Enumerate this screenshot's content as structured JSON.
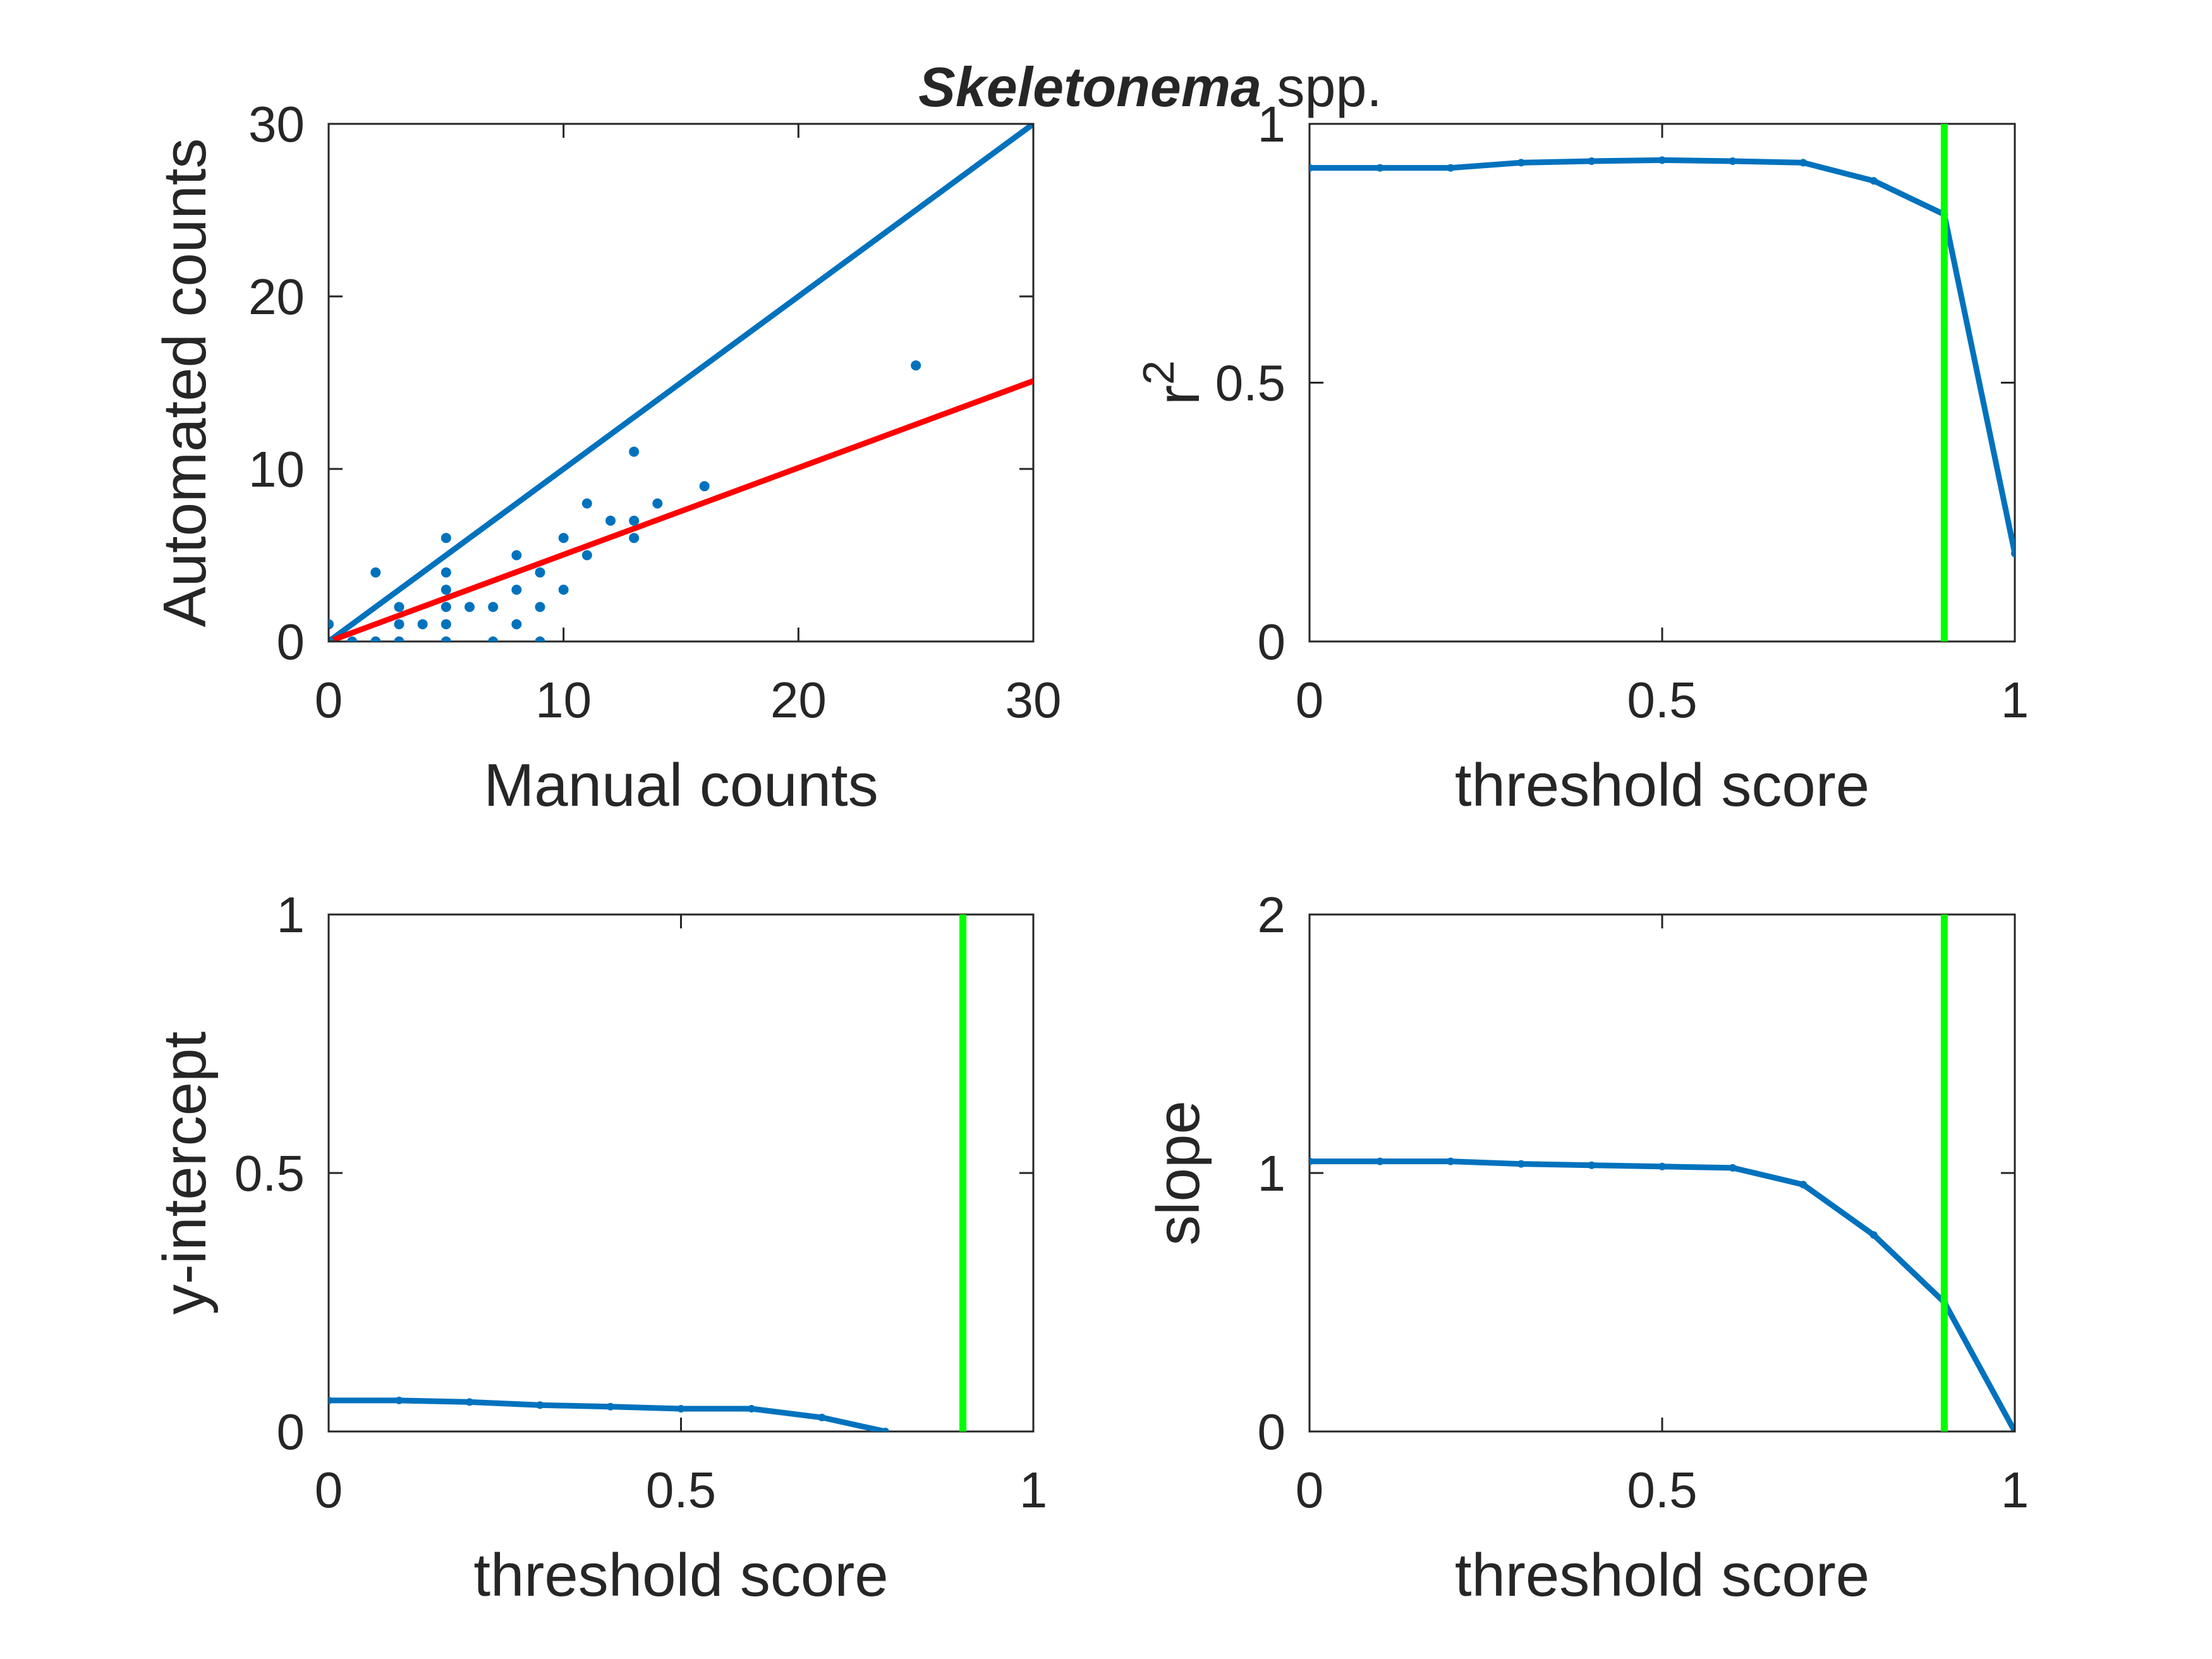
{
  "title": {
    "italic": "Skeletonema",
    "rest": " spp."
  },
  "colors": {
    "series": "#0072BD",
    "fit": "#FF0000",
    "threshold": "#00FF00",
    "axis": "#262626",
    "background": "#FFFFFF"
  },
  "chart_data": [
    {
      "id": "scatter",
      "type": "scatter",
      "xlabel": "Manual counts",
      "ylabel": "Automated counts",
      "xlim": [
        0,
        30
      ],
      "ylim": [
        0,
        30
      ],
      "xticks": [
        0,
        10,
        20,
        30
      ],
      "yticks": [
        0,
        10,
        20,
        30
      ],
      "xtick_labels": [
        "0",
        "10",
        "20",
        "30"
      ],
      "ytick_labels": [
        "0",
        "10",
        "20",
        "30"
      ],
      "grid": false,
      "points": [
        [
          0,
          1
        ],
        [
          0,
          0
        ],
        [
          1,
          0
        ],
        [
          2,
          4
        ],
        [
          2,
          0
        ],
        [
          3,
          2
        ],
        [
          3,
          1
        ],
        [
          3,
          0
        ],
        [
          4,
          1
        ],
        [
          5,
          6
        ],
        [
          5,
          4
        ],
        [
          5,
          3
        ],
        [
          5,
          2
        ],
        [
          5,
          1
        ],
        [
          5,
          0
        ],
        [
          6,
          2
        ],
        [
          7,
          2
        ],
        [
          7,
          0
        ],
        [
          8,
          5
        ],
        [
          8,
          3
        ],
        [
          8,
          1
        ],
        [
          9,
          4
        ],
        [
          9,
          2
        ],
        [
          9,
          0
        ],
        [
          10,
          6
        ],
        [
          10,
          3
        ],
        [
          11,
          8
        ],
        [
          11,
          5
        ],
        [
          12,
          7
        ],
        [
          13,
          11
        ],
        [
          13,
          7
        ],
        [
          13,
          6
        ],
        [
          14,
          8
        ],
        [
          16,
          9
        ],
        [
          25,
          16
        ]
      ],
      "lines": [
        {
          "kind": "one-to-one",
          "x": [
            0,
            30
          ],
          "y": [
            0,
            30
          ],
          "color": "#0072BD"
        },
        {
          "kind": "fit",
          "x": [
            0,
            30
          ],
          "y": [
            0,
            15.1
          ],
          "color": "#FF0000"
        }
      ]
    },
    {
      "id": "r2",
      "type": "line",
      "xlabel": "threshold score",
      "ylabel": "r",
      "ylabel_superscript": "2",
      "xlim": [
        0,
        1
      ],
      "ylim": [
        0,
        1
      ],
      "xticks": [
        0,
        0.5,
        1
      ],
      "yticks": [
        0,
        0.5,
        1
      ],
      "xtick_labels": [
        "0",
        "0.5",
        "1"
      ],
      "ytick_labels": [
        "0",
        "0.5",
        "1"
      ],
      "grid": false,
      "x": [
        0,
        0.1,
        0.2,
        0.3,
        0.4,
        0.5,
        0.6,
        0.7,
        0.8,
        0.9,
        1.0
      ],
      "y": [
        0.915,
        0.915,
        0.915,
        0.925,
        0.928,
        0.93,
        0.928,
        0.925,
        0.89,
        0.825,
        0.17
      ],
      "threshold_x": 0.9
    },
    {
      "id": "intercept",
      "type": "line",
      "xlabel": "threshold score",
      "ylabel": "y-intercept",
      "xlim": [
        0,
        1
      ],
      "ylim": [
        0,
        1
      ],
      "xticks": [
        0,
        0.5,
        1
      ],
      "yticks": [
        0,
        0.5,
        1
      ],
      "xtick_labels": [
        "0",
        "0.5",
        "1"
      ],
      "ytick_labels": [
        "0",
        "0.5",
        "1"
      ],
      "grid": false,
      "x": [
        0,
        0.1,
        0.2,
        0.3,
        0.4,
        0.5,
        0.6,
        0.7,
        0.79
      ],
      "y": [
        0.06,
        0.06,
        0.057,
        0.051,
        0.048,
        0.044,
        0.044,
        0.027,
        0.0
      ],
      "threshold_x": 0.9
    },
    {
      "id": "slope",
      "type": "line",
      "xlabel": "threshold score",
      "ylabel": "slope",
      "xlim": [
        0,
        1
      ],
      "ylim": [
        0,
        2
      ],
      "xticks": [
        0,
        0.5,
        1
      ],
      "yticks": [
        0,
        1,
        2
      ],
      "xtick_labels": [
        "0",
        "0.5",
        "1"
      ],
      "ytick_labels": [
        "0",
        "1",
        "2"
      ],
      "grid": false,
      "x": [
        0,
        0.1,
        0.2,
        0.3,
        0.4,
        0.5,
        0.6,
        0.7,
        0.8,
        0.9,
        1.0
      ],
      "y": [
        1.045,
        1.045,
        1.045,
        1.035,
        1.03,
        1.025,
        1.02,
        0.955,
        0.76,
        0.5,
        0.0
      ],
      "threshold_x": 0.9
    }
  ]
}
